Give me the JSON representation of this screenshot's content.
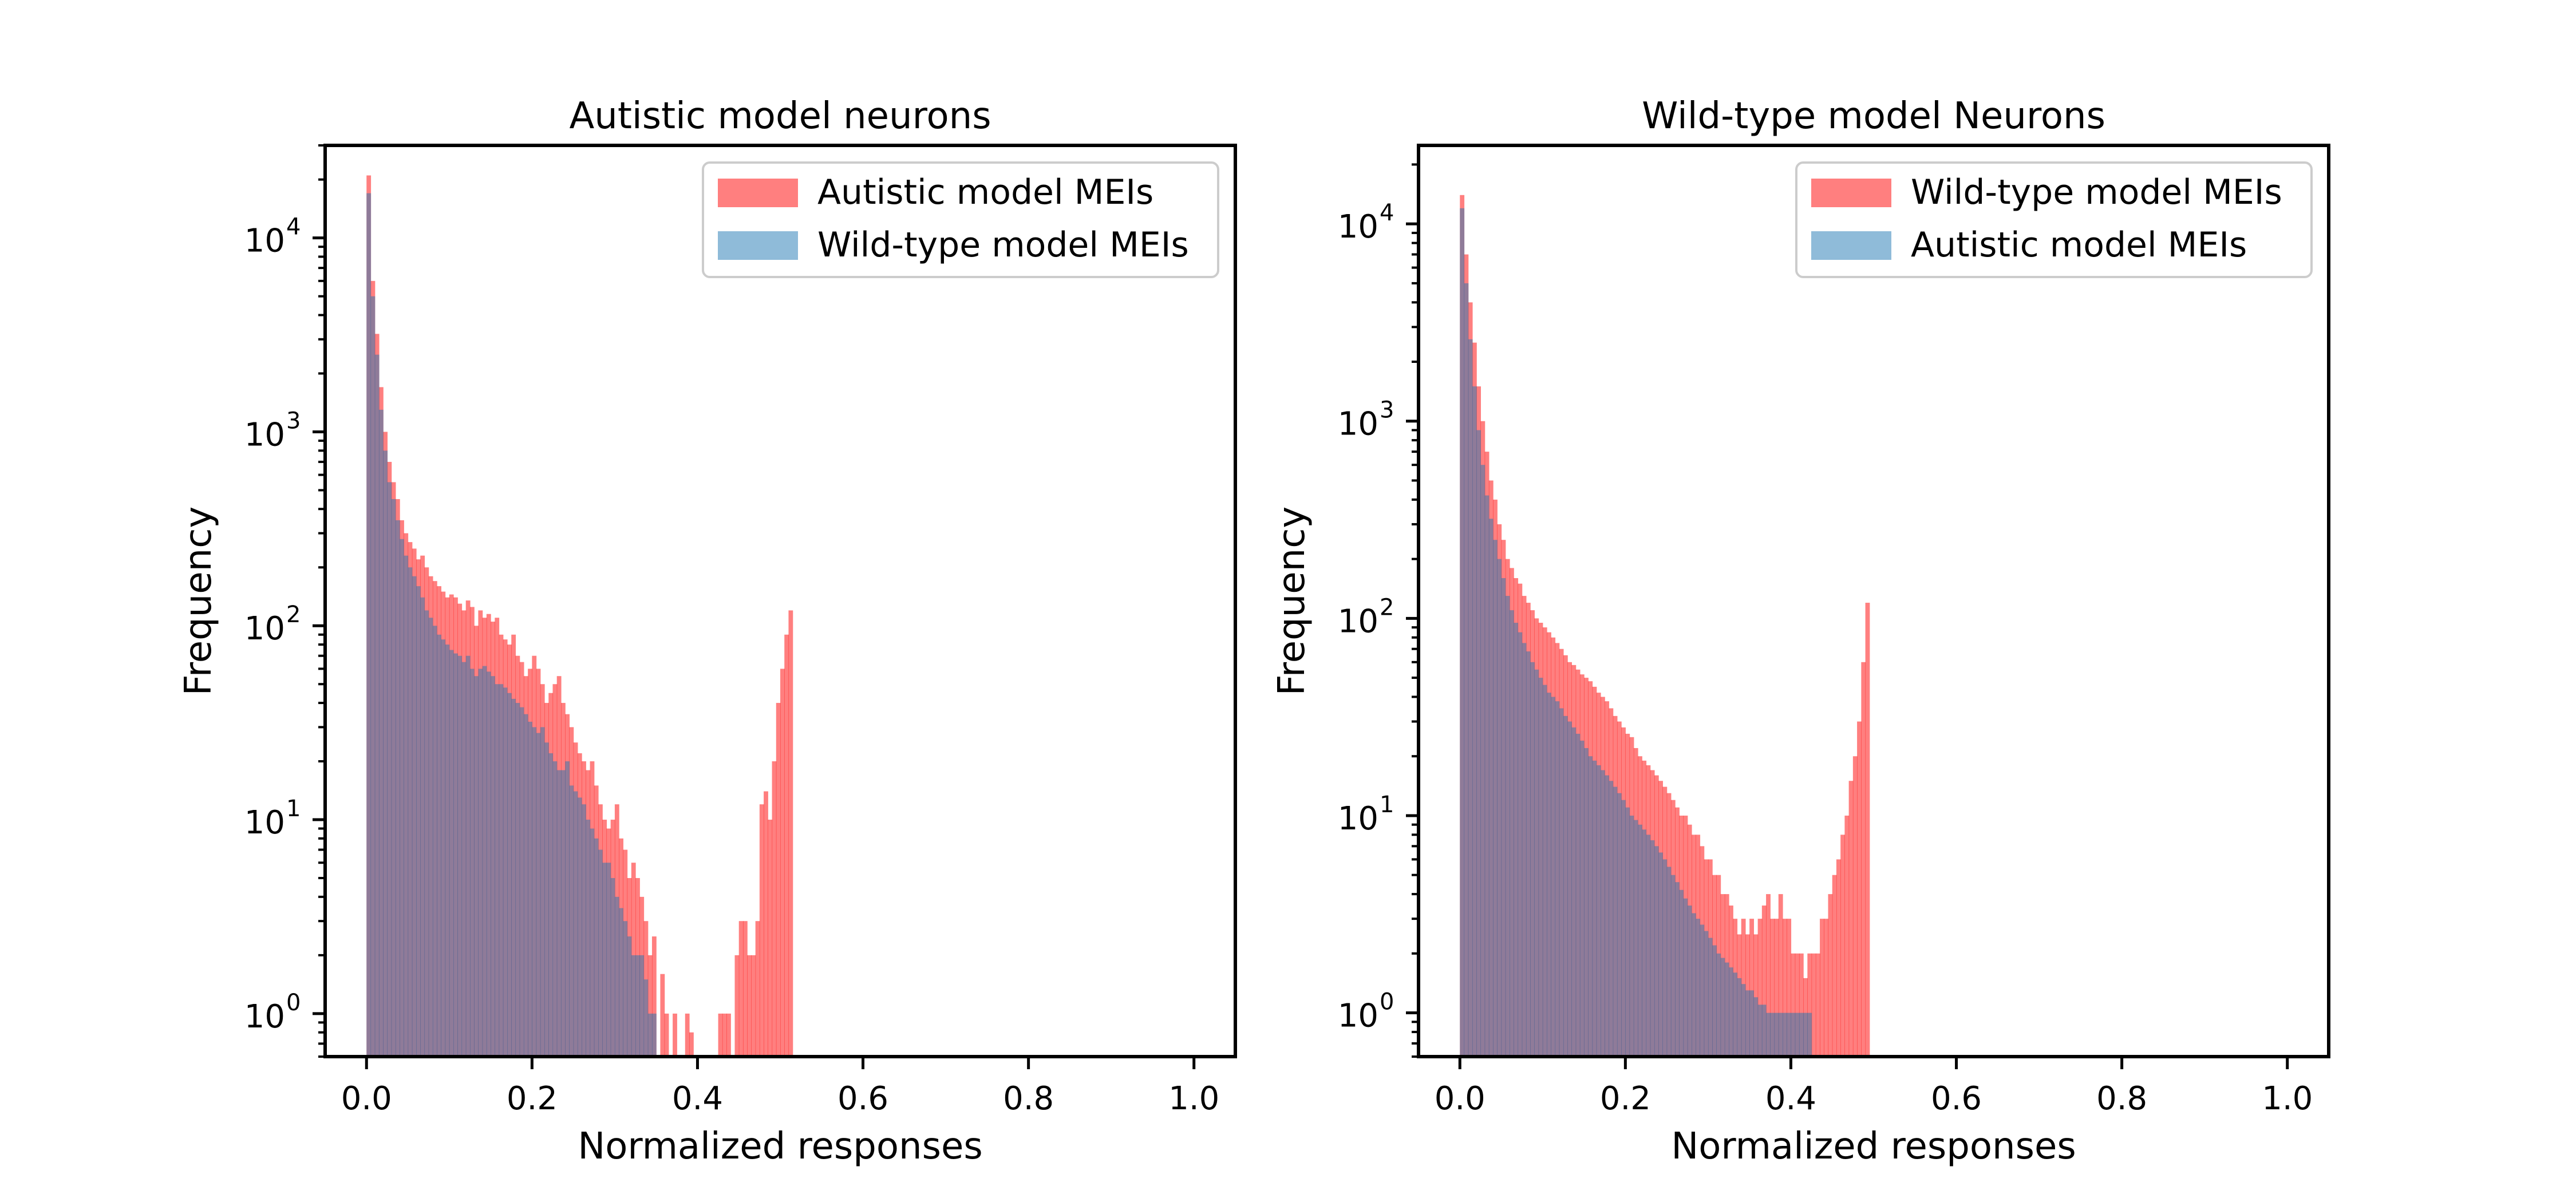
{
  "colors": {
    "red_hist": "#FF0000",
    "blue_hist": "#1F77B4",
    "red_alpha": 0.5,
    "blue_alpha": 0.5
  },
  "chart_data": [
    {
      "type": "bar",
      "subtype": "histogram",
      "title": "Autistic model neurons",
      "xlabel": "Normalized responses",
      "ylabel": "Frequency",
      "xlim": [
        -0.05,
        1.05
      ],
      "ylim": [
        0.6,
        30000
      ],
      "yscale": "log",
      "x_ticks": [
        0.0,
        0.2,
        0.4,
        0.6,
        0.8,
        1.0
      ],
      "x_tick_labels": [
        "0.0",
        "0.2",
        "0.4",
        "0.6",
        "0.8",
        "1.0"
      ],
      "y_ticks": [
        1,
        10,
        100,
        1000,
        10000
      ],
      "y_tick_labels": [
        "10",
        "10",
        "10",
        "10",
        "10"
      ],
      "y_tick_exponents": [
        "0",
        "1",
        "2",
        "3",
        "4"
      ],
      "legend_placement": "top-right",
      "bin_start": 0.0,
      "bin_width": 0.005,
      "series": [
        {
          "name": "Autistic model MEIs",
          "color_key": "red_hist",
          "values": [
            21000,
            6000,
            3200,
            1700,
            1000,
            700,
            550,
            450,
            350,
            300,
            270,
            250,
            220,
            230,
            200,
            180,
            170,
            160,
            150,
            140,
            145,
            140,
            130,
            120,
            135,
            125,
            100,
            120,
            110,
            115,
            105,
            110,
            90,
            85,
            80,
            90,
            70,
            65,
            55,
            60,
            70,
            60,
            50,
            40,
            45,
            50,
            55,
            40,
            35,
            30,
            25,
            22,
            20,
            18,
            20,
            15,
            12,
            10,
            9,
            10,
            12,
            8,
            7,
            5,
            6,
            5,
            4,
            3,
            2,
            2.5,
            0,
            1.6,
            1,
            0,
            1,
            0,
            0,
            1,
            0.8,
            0,
            0,
            0,
            0,
            0,
            0,
            1,
            1,
            1,
            0,
            2,
            3,
            3,
            2,
            2,
            3,
            12,
            14,
            10,
            20,
            40,
            60,
            90,
            120
          ]
        },
        {
          "name": "Wild-type model MEIs",
          "color_key": "blue_hist",
          "values": [
            17000,
            5000,
            2500,
            1300,
            800,
            550,
            450,
            350,
            280,
            230,
            200,
            180,
            160,
            140,
            120,
            110,
            100,
            90,
            85,
            80,
            75,
            72,
            70,
            65,
            70,
            60,
            55,
            60,
            62,
            58,
            55,
            50,
            50,
            48,
            45,
            42,
            40,
            38,
            35,
            32,
            30,
            28,
            30,
            25,
            22,
            20,
            18,
            18,
            20,
            15,
            14,
            13,
            12,
            10,
            9,
            8,
            7,
            6,
            6,
            5,
            4,
            3.5,
            3,
            2.5,
            2,
            2,
            2,
            1.5,
            1,
            1
          ]
        }
      ]
    },
    {
      "type": "bar",
      "subtype": "histogram",
      "title": "Wild-type model Neurons",
      "xlabel": "Normalized responses",
      "ylabel": "Frequency",
      "xlim": [
        -0.05,
        1.05
      ],
      "ylim": [
        0.6,
        25000
      ],
      "yscale": "log",
      "x_ticks": [
        0.0,
        0.2,
        0.4,
        0.6,
        0.8,
        1.0
      ],
      "x_tick_labels": [
        "0.0",
        "0.2",
        "0.4",
        "0.6",
        "0.8",
        "1.0"
      ],
      "y_ticks": [
        1,
        10,
        100,
        1000,
        10000
      ],
      "y_tick_labels": [
        "10",
        "10",
        "10",
        "10",
        "10"
      ],
      "y_tick_exponents": [
        "0",
        "1",
        "2",
        "3",
        "4"
      ],
      "legend_placement": "top-right",
      "bin_start": 0.0,
      "bin_width": 0.005,
      "series": [
        {
          "name": "Wild-type model MEIs",
          "color_key": "red_hist",
          "values": [
            14000,
            7000,
            4000,
            2500,
            1500,
            1000,
            700,
            500,
            400,
            300,
            250,
            200,
            180,
            160,
            150,
            130,
            120,
            110,
            100,
            95,
            90,
            85,
            80,
            75,
            70,
            65,
            60,
            58,
            55,
            52,
            50,
            48,
            45,
            42,
            40,
            38,
            35,
            32,
            30,
            28,
            26,
            25,
            22,
            20,
            19,
            18,
            17,
            16,
            15,
            14,
            13,
            12,
            11,
            10,
            10,
            9,
            8,
            8,
            7,
            6,
            6,
            5,
            5,
            4,
            4,
            3.5,
            3,
            2.5,
            3,
            2.5,
            3,
            2.5,
            3,
            3.5,
            4,
            3,
            3,
            4,
            3,
            3,
            2,
            2,
            2,
            1.5,
            2,
            2,
            2,
            3,
            3,
            4,
            5,
            6,
            8,
            10,
            15,
            20,
            30,
            60,
            120
          ]
        },
        {
          "name": "Autistic model MEIs",
          "color_key": "blue_hist",
          "values": [
            12000,
            5000,
            2600,
            1500,
            900,
            600,
            420,
            320,
            250,
            200,
            160,
            130,
            110,
            95,
            85,
            75,
            68,
            60,
            55,
            50,
            46,
            42,
            40,
            38,
            35,
            32,
            30,
            28,
            26,
            24,
            22,
            20,
            19,
            18,
            17,
            16,
            15,
            14,
            13,
            12,
            11,
            10,
            9.5,
            9,
            8.5,
            8,
            7.5,
            7,
            6.5,
            6,
            5.5,
            5,
            4.6,
            4.2,
            3.8,
            3.5,
            3.2,
            3,
            2.8,
            2.6,
            2.4,
            2.2,
            2,
            1.9,
            1.8,
            1.7,
            1.6,
            1.5,
            1.4,
            1.3,
            1.3,
            1.2,
            1.1,
            1.1,
            1,
            1,
            1,
            1,
            1,
            1,
            1,
            1,
            1,
            1,
            1
          ]
        }
      ]
    }
  ]
}
